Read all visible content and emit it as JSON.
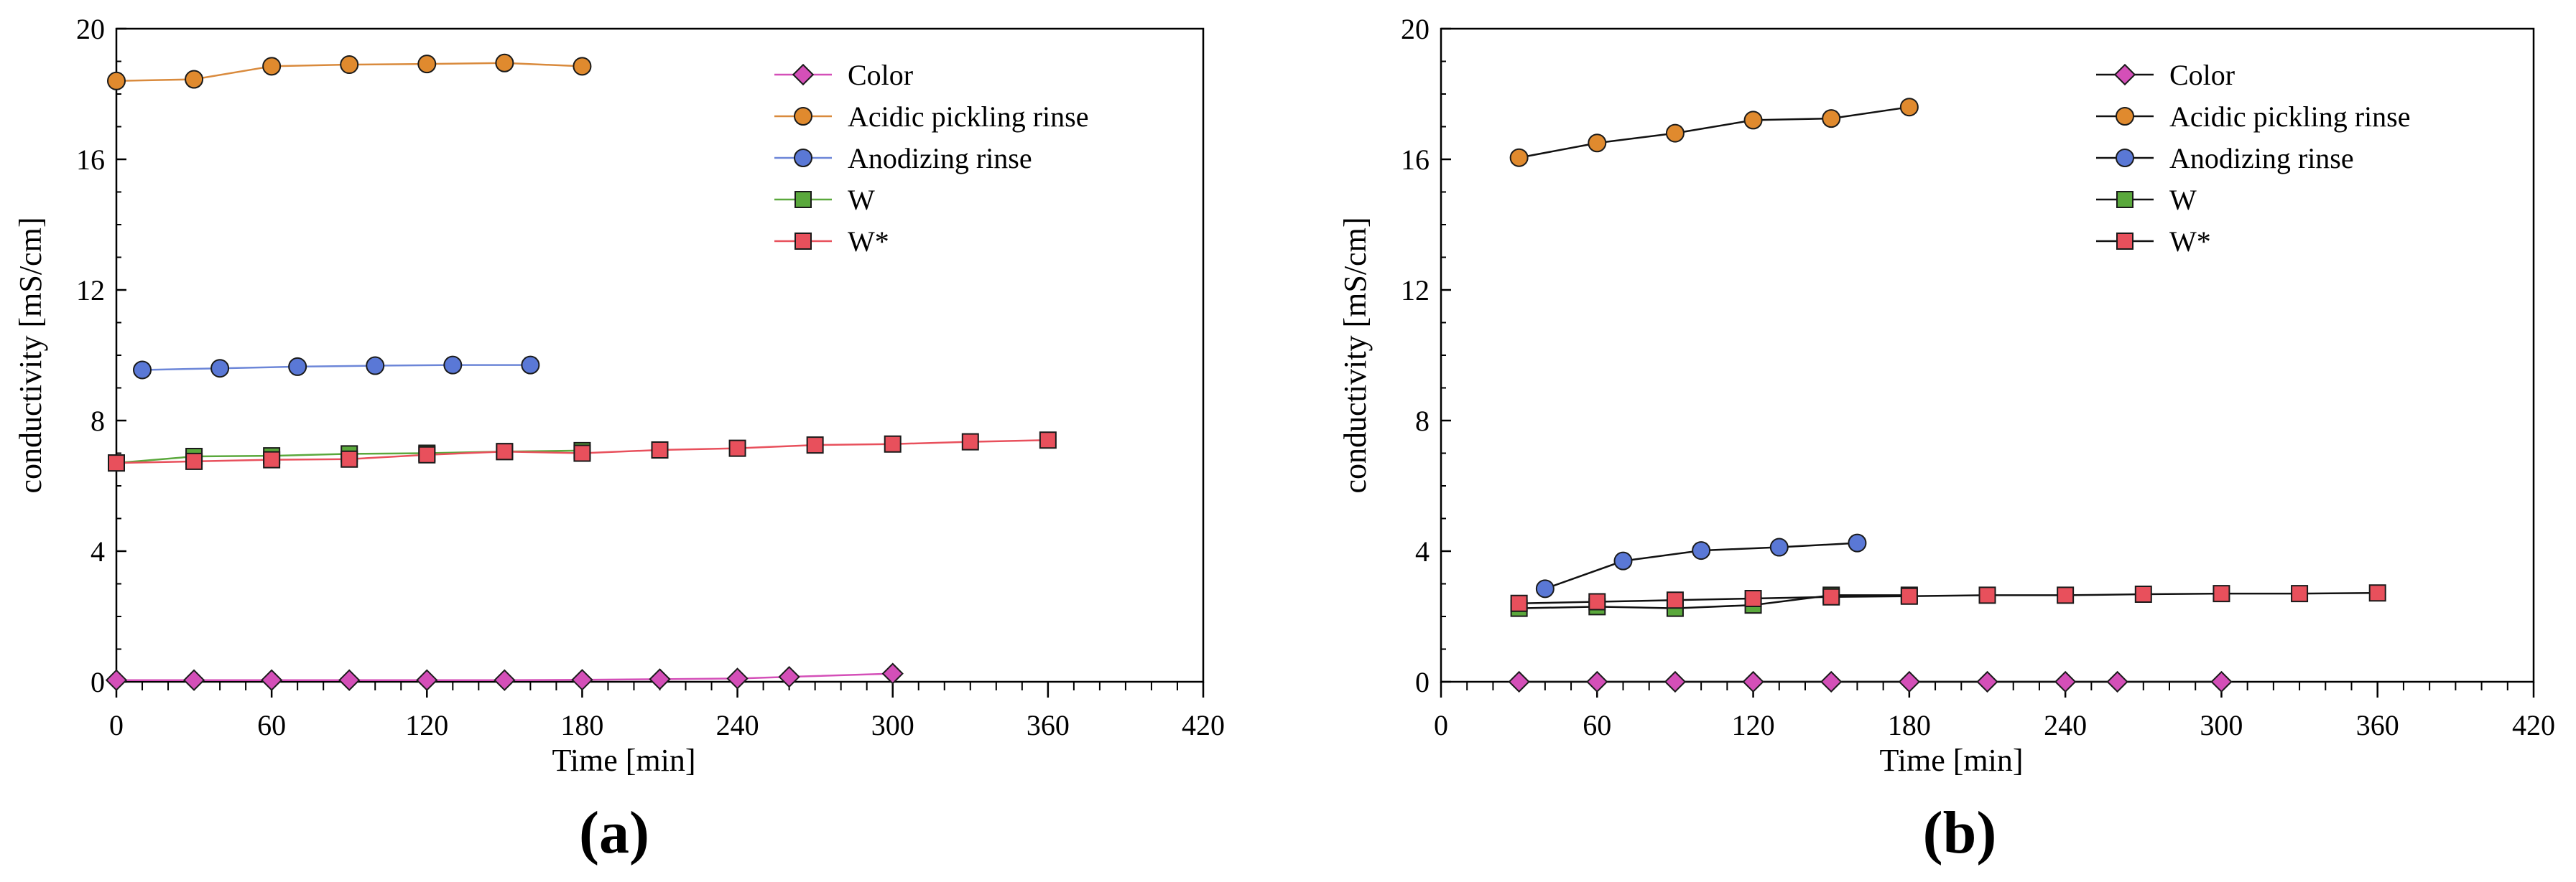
{
  "colors": {
    "Color": "#d44fb8",
    "Acidic pickling rinse": "#e08a2e",
    "Anodizing rinse": "#5a78d6",
    "W": "#5aa83c",
    "W*": "#e8505c"
  },
  "chart_data": [
    {
      "type": "line",
      "panel_label": "(a)",
      "xlabel": "Time [min]",
      "ylabel": "conductivity [mS/cm]",
      "xlim": [
        0,
        420
      ],
      "ylim": [
        0,
        20
      ],
      "xticks": [
        0,
        60,
        120,
        180,
        240,
        300,
        360,
        420
      ],
      "yticks": [
        0,
        4,
        8,
        12,
        16,
        20
      ],
      "legend_position": "top-right",
      "series": [
        {
          "name": "Color",
          "marker": "diamond",
          "line_color": "pink",
          "x": [
            0,
            30,
            60,
            90,
            120,
            150,
            180,
            210,
            240,
            260,
            300
          ],
          "y": [
            0.05,
            0.05,
            0.05,
            0.05,
            0.05,
            0.05,
            0.06,
            0.08,
            0.1,
            0.15,
            0.25
          ]
        },
        {
          "name": "Acidic pickling rinse",
          "marker": "circle",
          "line_color": "orange",
          "x": [
            0,
            30,
            60,
            90,
            120,
            150,
            180
          ],
          "y": [
            18.4,
            18.45,
            18.85,
            18.9,
            18.92,
            18.95,
            18.85
          ]
        },
        {
          "name": "Anodizing rinse",
          "marker": "circle",
          "line_color": "blue",
          "x": [
            10,
            40,
            70,
            100,
            130,
            160
          ],
          "y": [
            9.55,
            9.6,
            9.65,
            9.68,
            9.7,
            9.7
          ]
        },
        {
          "name": "W",
          "marker": "square",
          "line_color": "green",
          "x": [
            0,
            30,
            60,
            90,
            120,
            150,
            180
          ],
          "y": [
            6.7,
            6.9,
            6.92,
            6.98,
            7.0,
            7.05,
            7.08
          ]
        },
        {
          "name": "W*",
          "marker": "square",
          "line_color": "red",
          "x": [
            0,
            30,
            60,
            90,
            120,
            150,
            180,
            210,
            240,
            270,
            300,
            330,
            360
          ],
          "y": [
            6.7,
            6.75,
            6.8,
            6.82,
            6.95,
            7.05,
            7.0,
            7.1,
            7.15,
            7.25,
            7.28,
            7.35,
            7.4
          ]
        }
      ]
    },
    {
      "type": "line",
      "panel_label": "(b)",
      "xlabel": "Time [min]",
      "ylabel": "conductivity [mS/cm]",
      "xlim": [
        0,
        420
      ],
      "ylim": [
        0,
        20
      ],
      "xticks": [
        0,
        60,
        120,
        180,
        240,
        300,
        360,
        420
      ],
      "yticks": [
        0,
        4,
        8,
        12,
        16,
        20
      ],
      "legend_position": "top-right",
      "series": [
        {
          "name": "Color",
          "marker": "diamond",
          "line_color": "black",
          "x": [
            30,
            60,
            90,
            120,
            150,
            180,
            210,
            240,
            260,
            300
          ],
          "y": [
            0,
            0,
            0,
            0,
            0,
            0,
            0,
            0,
            0,
            0
          ]
        },
        {
          "name": "Acidic pickling rinse",
          "marker": "circle",
          "line_color": "black",
          "x": [
            30,
            60,
            90,
            120,
            150,
            180
          ],
          "y": [
            16.05,
            16.5,
            16.8,
            17.2,
            17.25,
            17.6
          ]
        },
        {
          "name": "Anodizing rinse",
          "marker": "circle",
          "line_color": "black",
          "x": [
            40,
            70,
            100,
            130,
            160
          ],
          "y": [
            2.85,
            3.7,
            4.02,
            4.12,
            4.25
          ]
        },
        {
          "name": "W",
          "marker": "square",
          "line_color": "black",
          "x": [
            30,
            60,
            90,
            120,
            150,
            180
          ],
          "y": [
            2.25,
            2.3,
            2.25,
            2.35,
            2.65,
            2.65
          ]
        },
        {
          "name": "W*",
          "marker": "square",
          "line_color": "black",
          "x": [
            30,
            60,
            90,
            120,
            150,
            180,
            210,
            240,
            270,
            300,
            330,
            360
          ],
          "y": [
            2.4,
            2.45,
            2.5,
            2.55,
            2.6,
            2.62,
            2.65,
            2.65,
            2.68,
            2.7,
            2.7,
            2.72
          ]
        }
      ]
    }
  ]
}
